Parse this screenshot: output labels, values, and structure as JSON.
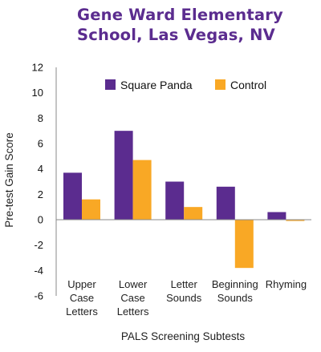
{
  "chart_data": {
    "type": "bar",
    "title_lines": [
      "Gene Ward Elementary",
      "School, Las Vegas, NV"
    ],
    "categories": [
      [
        "Upper",
        "Case",
        "Letters"
      ],
      [
        "Lower",
        "Case",
        "Letters"
      ],
      [
        "Letter",
        "Sounds"
      ],
      [
        "Beginning",
        "Sounds"
      ],
      [
        "Rhyming"
      ]
    ],
    "series": [
      {
        "name": "Square Panda",
        "color": "#5b2c8f",
        "values": [
          3.7,
          7.0,
          3.0,
          2.6,
          0.6
        ]
      },
      {
        "name": "Control",
        "color": "#f9a825",
        "values": [
          1.6,
          4.7,
          1.0,
          -3.8,
          -0.1
        ]
      }
    ],
    "xlabel": "PALS Screening Subtests",
    "ylabel": "Pre-test Gain Score",
    "ylim": [
      -6,
      12
    ],
    "yticks": [
      12,
      10,
      8,
      6,
      4,
      2,
      0,
      -2,
      -4,
      -6
    ],
    "grid": false,
    "legend": "top"
  }
}
